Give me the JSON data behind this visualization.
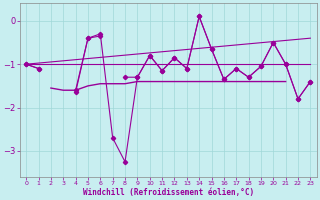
{
  "xlabel": "Windchill (Refroidissement éolien,°C)",
  "x": [
    0,
    1,
    2,
    3,
    4,
    5,
    6,
    7,
    8,
    9,
    10,
    11,
    12,
    13,
    14,
    15,
    16,
    17,
    18,
    19,
    20,
    21,
    22,
    23
  ],
  "volatile_line": [
    -1.0,
    -1.1,
    null,
    null,
    -1.6,
    -0.4,
    -0.3,
    -2.7,
    -3.25,
    -1.3,
    -0.8,
    -1.15,
    -0.85,
    -1.1,
    0.1,
    -0.65,
    -1.35,
    -1.1,
    -1.3,
    -1.05,
    -0.5,
    -1.0,
    -1.8,
    -1.4
  ],
  "smooth_line": [
    -1.0,
    -1.1,
    null,
    null,
    -1.65,
    -0.4,
    -0.35,
    null,
    -1.3,
    -1.3,
    -0.8,
    -1.15,
    -0.85,
    -1.1,
    0.1,
    -0.65,
    -1.35,
    -1.1,
    -1.3,
    -1.05,
    -0.5,
    -1.0,
    -1.8,
    -1.4
  ],
  "trend1_x": [
    0,
    23
  ],
  "trend1_y": [
    -1.0,
    -0.4
  ],
  "trend2_x": [
    0,
    23
  ],
  "trend2_y": [
    -1.0,
    -1.0
  ],
  "flat_line": [
    null,
    null,
    -1.55,
    -1.6,
    -1.6,
    -1.5,
    -1.45,
    -1.45,
    -1.45,
    -1.4,
    -1.4,
    -1.4,
    -1.4,
    -1.4,
    -1.4,
    -1.4,
    -1.4,
    -1.4,
    -1.4,
    -1.4,
    -1.4,
    -1.4,
    null,
    null
  ],
  "bg_color": "#c8eef0",
  "line_color": "#990099",
  "grid_color": "#a0d8d8",
  "ylim": [
    -3.6,
    0.4
  ],
  "xlim": [
    -0.5,
    23.5
  ],
  "yticks": [
    0,
    -1,
    -2,
    -3
  ],
  "xticks": [
    0,
    1,
    2,
    3,
    4,
    5,
    6,
    7,
    8,
    9,
    10,
    11,
    12,
    13,
    14,
    15,
    16,
    17,
    18,
    19,
    20,
    21,
    22,
    23
  ]
}
